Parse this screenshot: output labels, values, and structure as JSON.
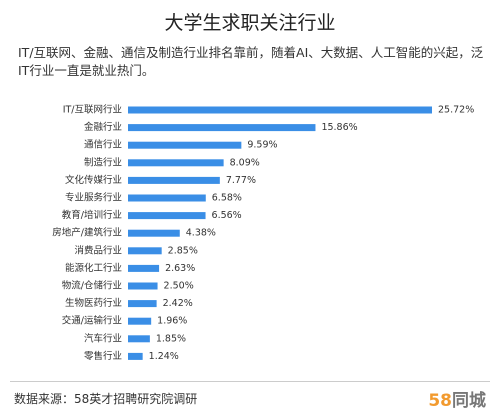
{
  "chart_data": {
    "type": "hbar",
    "title": "大学生求职关注行业",
    "subtitle": "IT/互联网、金融、通信及制造行业排名靠前，随着AI、大数据、人工智能的兴起，泛IT行业一直是就业热门。",
    "categories": [
      "IT/互联网行业",
      "金融行业",
      "通信行业",
      "制造行业",
      "文化传媒行业",
      "专业服务行业",
      "教育/培训行业",
      "房地产/建筑行业",
      "消费品行业",
      "能源化工行业",
      "物流/仓储行业",
      "生物医药行业",
      "交通/运输行业",
      "汽车行业",
      "零售行业"
    ],
    "values": [
      25.72,
      15.86,
      9.59,
      8.09,
      7.77,
      6.58,
      6.56,
      4.38,
      2.85,
      2.63,
      2.5,
      2.42,
      1.96,
      1.85,
      1.24
    ],
    "value_labels": [
      "25.72%",
      "15.86%",
      "9.59%",
      "8.09%",
      "7.77%",
      "6.58%",
      "6.56%",
      "4.38%",
      "2.85%",
      "2.63%",
      "2.50%",
      "2.42%",
      "1.96%",
      "1.85%",
      "1.24%"
    ],
    "color": "#3a8ee6",
    "source": "数据来源：58英才招聘研究院调研",
    "logo": {
      "number": "58",
      "text": "同城"
    }
  }
}
